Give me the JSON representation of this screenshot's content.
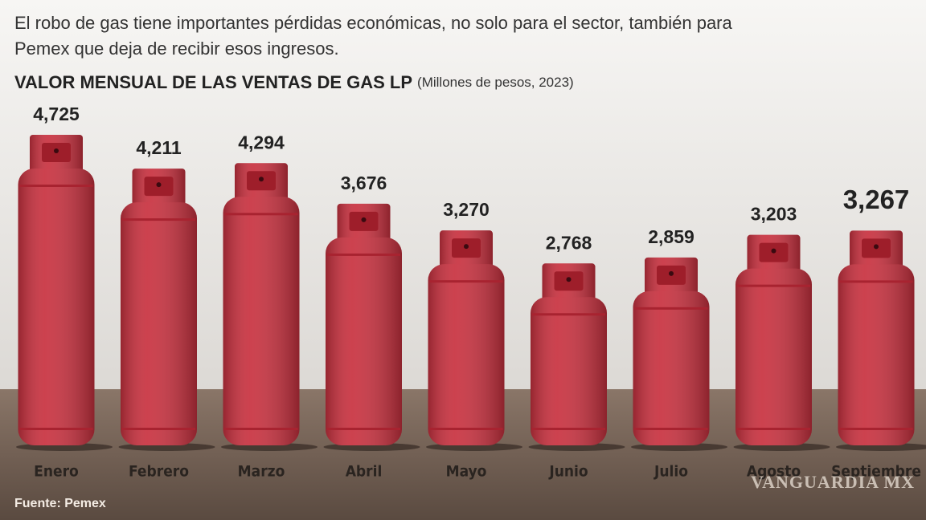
{
  "intro": "El robo de gas tiene importantes pérdidas económicas, no solo para el sector, también para",
  "intro_2": "Pemex que deja de recibir esos ingresos.",
  "chart_data": {
    "type": "bar",
    "title": "VALOR MENSUAL DE LAS VENTAS DE GAS LP",
    "subtitle": "(Millones de pesos, 2023)",
    "categories": [
      "Enero",
      "Febrero",
      "Marzo",
      "Abril",
      "Mayo",
      "Junio",
      "Julio",
      "Agosto",
      "Septiembre"
    ],
    "values": [
      4725,
      4211,
      4294,
      3676,
      3270,
      2768,
      2859,
      3203,
      3267
    ],
    "value_labels": [
      "4,725",
      "4,211",
      "4,294",
      "3,676",
      "3,270",
      "2,768",
      "2,859",
      "3,203",
      "3,267"
    ],
    "color": "#c8313f"
  },
  "source": "Fuente: Pemex",
  "watermark": "VANGUARDIA MX"
}
